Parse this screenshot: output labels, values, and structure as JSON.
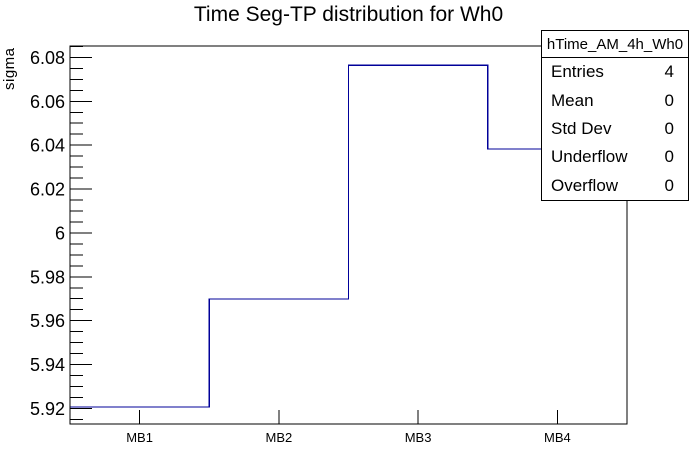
{
  "chart_data": {
    "type": "line",
    "style": "root-step-histogram",
    "title": "Time Seg-TP distribution for Wh0",
    "xlabel": "",
    "ylabel": "sigma",
    "categories": [
      "MB1",
      "MB2",
      "MB3",
      "MB4"
    ],
    "values": [
      5.9207,
      5.9699,
      6.0765,
      6.0383
    ],
    "ylim": [
      5.9129,
      6.0852
    ],
    "yticks": [
      {
        "value": 5.92,
        "label": "5.92"
      },
      {
        "value": 5.94,
        "label": "5.94"
      },
      {
        "value": 5.96,
        "label": "5.96"
      },
      {
        "value": 5.98,
        "label": "5.98"
      },
      {
        "value": 6.0,
        "label": "6"
      },
      {
        "value": 6.02,
        "label": "6.02"
      },
      {
        "value": 6.04,
        "label": "6.04"
      },
      {
        "value": 6.06,
        "label": "6.06"
      },
      {
        "value": 6.08,
        "label": "6.08"
      }
    ],
    "ytick_minor_step": 0.005,
    "grid": false,
    "legend": "none",
    "line_color": "#000099",
    "axis_color": "#000000",
    "background_color": "#ffffff"
  },
  "stats_box": {
    "header": "hTime_AM_4h_Wh0",
    "rows": [
      {
        "label": "Entries",
        "value": "4"
      },
      {
        "label": "Mean",
        "value": "0"
      },
      {
        "label": "Std Dev",
        "value": "0"
      },
      {
        "label": "Underflow",
        "value": "0"
      },
      {
        "label": "Overflow",
        "value": "0"
      }
    ]
  }
}
